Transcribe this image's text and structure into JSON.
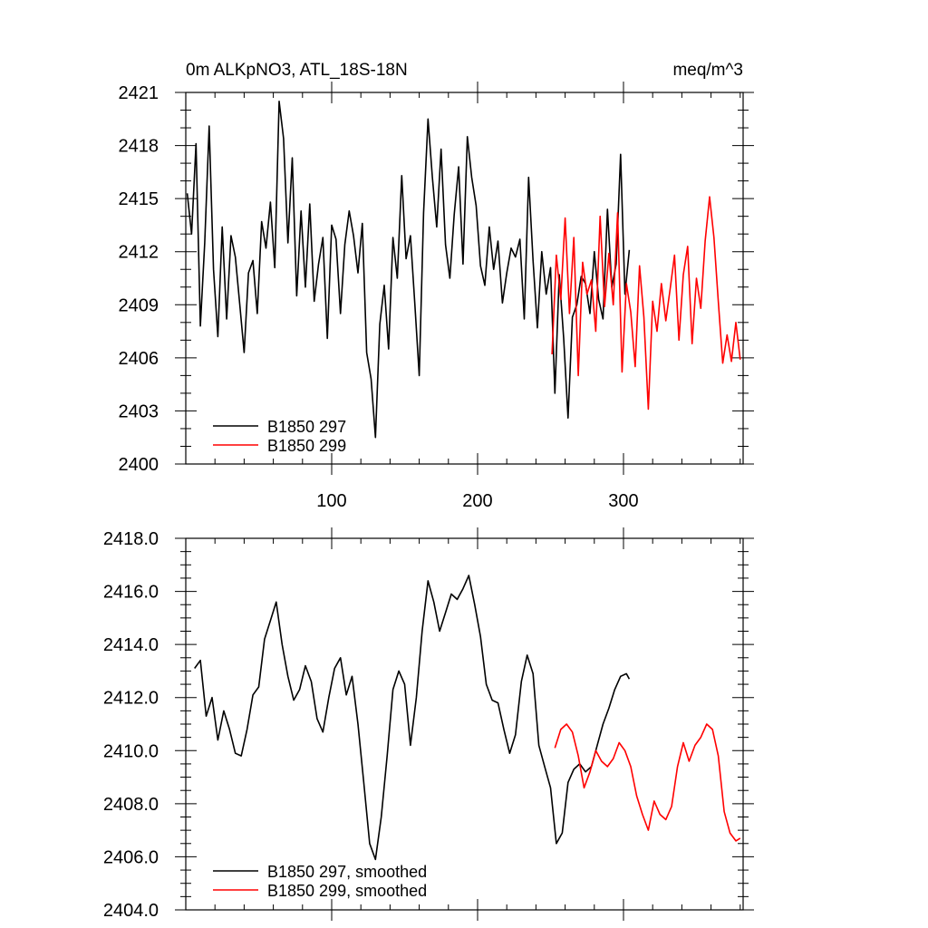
{
  "chart_data": [
    {
      "type": "line",
      "title_left": "0m ALKpNO3, ATL_18S-18N",
      "title_right": "meq/m^3",
      "xlim": [
        0,
        382
      ],
      "ylim": [
        2400,
        2421
      ],
      "xticks": [
        100,
        200,
        300
      ],
      "xtick_labels": [
        "100",
        "200",
        "300"
      ],
      "yticks": [
        2400,
        2403,
        2406,
        2409,
        2412,
        2415,
        2418,
        2421
      ],
      "ytick_labels": [
        "2400",
        "2403",
        "2406",
        "2409",
        "2412",
        "2415",
        "2418",
        "2421"
      ],
      "legend_position": "bottom-left",
      "series": [
        {
          "name": "B1850 297",
          "color": "#000000",
          "x": [
            1,
            4,
            7,
            10,
            13,
            16,
            19,
            22,
            25,
            28,
            31,
            34,
            37,
            40,
            43,
            46,
            49,
            52,
            55,
            58,
            61,
            64,
            67,
            70,
            73,
            76,
            79,
            82,
            85,
            88,
            91,
            94,
            97,
            100,
            103,
            106,
            109,
            112,
            115,
            118,
            121,
            124,
            127,
            130,
            133,
            136,
            139,
            142,
            145,
            148,
            151,
            154,
            157,
            160,
            163,
            166,
            169,
            172,
            175,
            178,
            181,
            184,
            187,
            190,
            193,
            196,
            199,
            202,
            205,
            208,
            211,
            214,
            217,
            220,
            223,
            226,
            229,
            232,
            235,
            238,
            241,
            244,
            247,
            250,
            253,
            256,
            259,
            262,
            265,
            268,
            271,
            274,
            277,
            280,
            283,
            286,
            289,
            292,
            295,
            298,
            301,
            304
          ],
          "values": [
            2415.3,
            2413.0,
            2418.1,
            2407.8,
            2412.5,
            2419.1,
            2411.0,
            2407.2,
            2413.4,
            2408.2,
            2412.9,
            2411.7,
            2409.0,
            2406.3,
            2410.8,
            2411.5,
            2408.5,
            2413.7,
            2412.2,
            2414.8,
            2411.1,
            2420.5,
            2418.4,
            2412.5,
            2417.3,
            2409.5,
            2414.3,
            2410.0,
            2414.7,
            2409.2,
            2411.3,
            2412.8,
            2407.1,
            2413.5,
            2412.7,
            2408.5,
            2412.4,
            2414.3,
            2412.9,
            2410.8,
            2413.6,
            2406.3,
            2404.8,
            2401.5,
            2407.9,
            2410.1,
            2406.5,
            2412.8,
            2410.5,
            2416.3,
            2411.6,
            2412.9,
            2409.0,
            2405.0,
            2414.2,
            2419.5,
            2416.2,
            2413.4,
            2417.8,
            2412.4,
            2410.5,
            2414.1,
            2416.8,
            2411.3,
            2418.5,
            2416.2,
            2414.6,
            2411.2,
            2410.1,
            2413.4,
            2411.0,
            2412.6,
            2409.1,
            2410.8,
            2412.2,
            2411.7,
            2412.7,
            2408.2,
            2416.2,
            2411.5,
            2407.7,
            2412.0,
            2409.6,
            2411.1,
            2404.0,
            2410.7,
            2407.1,
            2402.6,
            2408.3,
            2409.0,
            2410.6,
            2410.2,
            2408.5,
            2412.0,
            2409.3,
            2408.2,
            2414.4,
            2410.0,
            2411.3,
            2417.5,
            2409.6,
            2412.1
          ]
        },
        {
          "name": "B1850 299",
          "color": "#ff0000",
          "x": [
            251,
            254,
            257,
            260,
            263,
            266,
            269,
            272,
            275,
            278,
            281,
            284,
            287,
            290,
            293,
            296,
            299,
            302,
            305,
            308,
            311,
            314,
            317,
            320,
            323,
            326,
            329,
            332,
            335,
            338,
            341,
            344,
            347,
            350,
            353,
            356,
            359,
            362,
            365,
            368,
            371,
            374,
            377,
            380
          ],
          "values": [
            2406.2,
            2411.8,
            2409.3,
            2413.9,
            2408.5,
            2412.8,
            2405.0,
            2411.4,
            2409.6,
            2410.4,
            2407.5,
            2414.0,
            2408.9,
            2411.9,
            2409.0,
            2414.2,
            2405.2,
            2410.2,
            2408.6,
            2405.5,
            2411.2,
            2408.3,
            2403.1,
            2409.2,
            2407.5,
            2410.2,
            2408.1,
            2409.9,
            2411.8,
            2407.0,
            2410.7,
            2412.3,
            2406.8,
            2410.5,
            2408.8,
            2412.6,
            2415.1,
            2412.8,
            2409.2,
            2405.7,
            2407.3,
            2405.8,
            2408.0,
            2405.9
          ]
        }
      ]
    },
    {
      "type": "line",
      "xlim": [
        0,
        382
      ],
      "ylim": [
        2404.0,
        2418.0
      ],
      "xticks": [
        100,
        200,
        300
      ],
      "yticks": [
        2404.0,
        2406.0,
        2408.0,
        2410.0,
        2412.0,
        2414.0,
        2416.0,
        2418.0
      ],
      "ytick_labels": [
        "2404.0",
        "2406.0",
        "2408.0",
        "2410.0",
        "2412.0",
        "2414.0",
        "2416.0",
        "2418.0"
      ],
      "legend_position": "bottom-left",
      "series": [
        {
          "name": "B1850 297, smoothed",
          "color": "#000000",
          "x": [
            6,
            10,
            14,
            18,
            22,
            26,
            30,
            34,
            38,
            42,
            46,
            50,
            54,
            58,
            62,
            66,
            70,
            74,
            78,
            82,
            86,
            90,
            94,
            98,
            102,
            106,
            110,
            114,
            118,
            122,
            126,
            130,
            134,
            138,
            142,
            146,
            150,
            154,
            158,
            162,
            166,
            170,
            174,
            178,
            182,
            186,
            190,
            194,
            198,
            202,
            206,
            210,
            214,
            218,
            222,
            226,
            230,
            234,
            238,
            242,
            246,
            250,
            254,
            258,
            262,
            266,
            270,
            274,
            278,
            282,
            286,
            290,
            294,
            298,
            302,
            304
          ],
          "values": [
            2413.1,
            2413.4,
            2411.3,
            2412.0,
            2410.4,
            2411.5,
            2410.8,
            2409.9,
            2409.8,
            2410.8,
            2412.1,
            2412.4,
            2414.2,
            2414.9,
            2415.6,
            2414.0,
            2412.8,
            2411.9,
            2412.3,
            2413.2,
            2412.6,
            2411.2,
            2410.7,
            2412.0,
            2413.1,
            2413.5,
            2412.1,
            2412.8,
            2411.0,
            2408.8,
            2406.5,
            2405.9,
            2407.5,
            2409.8,
            2412.3,
            2413.0,
            2412.5,
            2410.2,
            2412.0,
            2414.5,
            2416.4,
            2415.6,
            2414.5,
            2415.2,
            2415.9,
            2415.7,
            2416.1,
            2416.6,
            2415.5,
            2414.3,
            2412.5,
            2411.9,
            2411.8,
            2410.8,
            2409.9,
            2410.6,
            2412.6,
            2413.6,
            2412.9,
            2410.2,
            2409.4,
            2408.6,
            2406.5,
            2406.9,
            2408.8,
            2409.3,
            2409.5,
            2409.2,
            2409.4,
            2410.2,
            2411.0,
            2411.6,
            2412.3,
            2412.8,
            2412.9,
            2412.7
          ]
        },
        {
          "name": "B1850 299, smoothed",
          "color": "#ff0000",
          "x": [
            253,
            257,
            261,
            265,
            269,
            273,
            277,
            281,
            285,
            289,
            293,
            297,
            301,
            305,
            309,
            313,
            317,
            321,
            325,
            329,
            333,
            337,
            341,
            345,
            349,
            353,
            357,
            361,
            365,
            369,
            373,
            377,
            380
          ],
          "values": [
            2410.1,
            2410.8,
            2411.0,
            2410.7,
            2409.8,
            2408.6,
            2409.2,
            2410.0,
            2409.6,
            2409.4,
            2409.7,
            2410.3,
            2410.0,
            2409.4,
            2408.3,
            2407.6,
            2407.0,
            2408.1,
            2407.6,
            2407.4,
            2407.9,
            2409.4,
            2410.3,
            2409.6,
            2410.2,
            2410.5,
            2411.0,
            2410.8,
            2409.8,
            2407.7,
            2406.9,
            2406.6,
            2406.7
          ]
        }
      ]
    }
  ]
}
